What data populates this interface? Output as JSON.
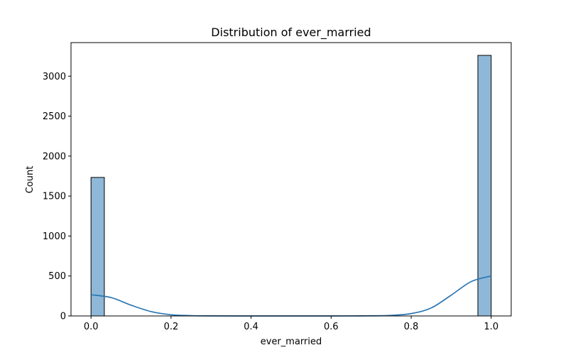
{
  "chart_data": {
    "type": "histogram",
    "title": "Distribution of ever_married",
    "xlabel": "ever_married",
    "ylabel": "Count",
    "xlim": [
      -0.05,
      1.05
    ],
    "ylim": [
      0,
      3420
    ],
    "xticks": [
      0.0,
      0.2,
      0.4,
      0.6,
      0.8,
      1.0
    ],
    "xtick_labels": [
      "0.0",
      "0.2",
      "0.4",
      "0.6",
      "0.8",
      "1.0"
    ],
    "yticks": [
      0,
      500,
      1000,
      1500,
      2000,
      2500,
      3000
    ],
    "ytick_labels": [
      "0",
      "500",
      "1000",
      "1500",
      "2000",
      "2500",
      "3000"
    ],
    "bins": [
      {
        "x0": 0.0,
        "x1": 0.0333,
        "count": 1733
      },
      {
        "x0": 0.9667,
        "x1": 1.0,
        "count": 3260
      }
    ],
    "kde": {
      "x": [
        0.0,
        0.05,
        0.1,
        0.15,
        0.2,
        0.25,
        0.3,
        0.4,
        0.5,
        0.6,
        0.7,
        0.75,
        0.8,
        0.85,
        0.9,
        0.95,
        1.0
      ],
      "y": [
        265,
        230,
        135,
        55,
        15,
        4,
        1,
        0,
        0,
        0,
        2,
        7,
        30,
        100,
        260,
        430,
        500
      ]
    },
    "bar_color": "#8fb8d8",
    "bar_edge_color": "#000000",
    "kde_color": "#2a77b4"
  }
}
